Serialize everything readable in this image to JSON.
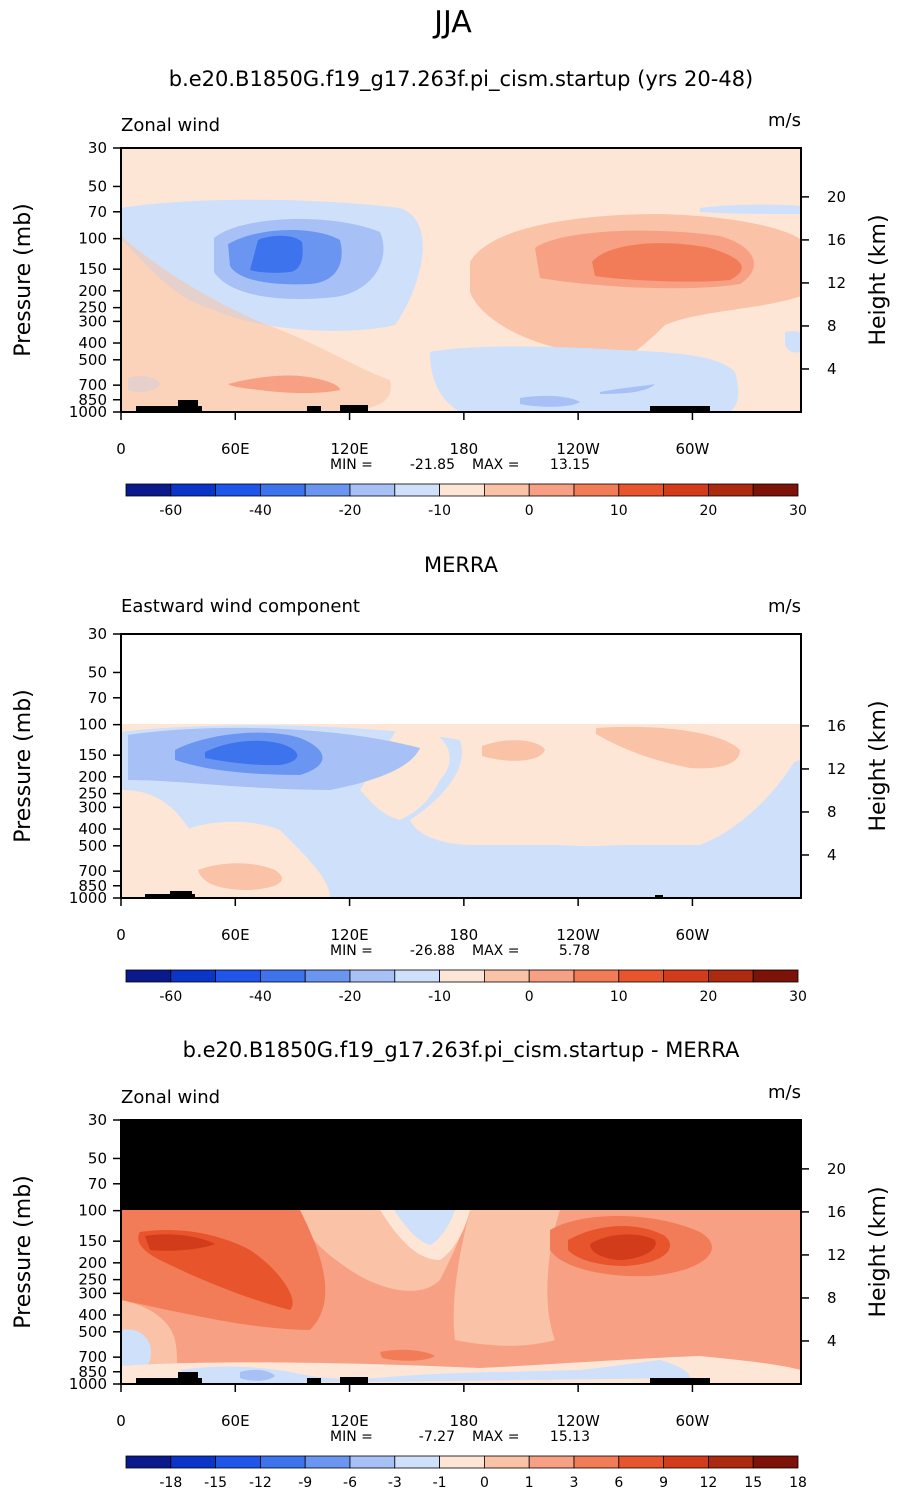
{
  "figure_title": "JJA",
  "chart_data": [
    {
      "type": "heatmap",
      "title": "b.e20.B1850G.f19_g17.263f.pi_cism.startup (yrs 20-48)",
      "subtitle_left": "Zonal wind",
      "units": "m/s",
      "ylabel": "Pressure (mb)",
      "ylabel_right": "Height (km)",
      "x_ticks": [
        "0",
        "60E",
        "120E",
        "180",
        "120W",
        "60W"
      ],
      "x_tick_values": [
        0,
        60,
        120,
        180,
        240,
        300
      ],
      "xlim": [
        0,
        357
      ],
      "y_ticks": [
        30,
        50,
        70,
        100,
        150,
        200,
        250,
        300,
        400,
        500,
        700,
        850,
        1000
      ],
      "ylim": [
        1000,
        30
      ],
      "height_ticks": [
        4,
        8,
        12,
        16,
        20
      ],
      "min_label": "MIN =",
      "max_label": "MAX =",
      "min_text": "-21.85",
      "max_text": "13.15",
      "colorbar_labels": [
        "-60",
        "-40",
        "-20",
        "-10",
        "0",
        "10",
        "20",
        "30"
      ],
      "colorbar_colors": [
        "#0a1a8c",
        "#0b35c8",
        "#1f55e8",
        "#3d74ee",
        "#6a95f0",
        "#a7c0f5",
        "#cfe0fa",
        "#fde6d6",
        "#fac2a6",
        "#f7a083",
        "#f27c57",
        "#e8552c",
        "#d23c1a",
        "#ab2a10",
        "#7d1208"
      ],
      "missing_above_mb": null
    },
    {
      "type": "heatmap",
      "title": "MERRA",
      "subtitle_left": "Eastward wind component",
      "units": "m/s",
      "ylabel": "Pressure (mb)",
      "ylabel_right": "Height (km)",
      "x_ticks": [
        "0",
        "60E",
        "120E",
        "180",
        "120W",
        "60W"
      ],
      "x_tick_values": [
        0,
        60,
        120,
        180,
        240,
        300
      ],
      "xlim": [
        0,
        357
      ],
      "y_ticks": [
        30,
        50,
        70,
        100,
        150,
        200,
        250,
        300,
        400,
        500,
        700,
        850,
        1000
      ],
      "ylim": [
        1000,
        30
      ],
      "height_ticks": [
        4,
        8,
        12,
        16
      ],
      "min_label": "MIN =",
      "max_label": "MAX =",
      "min_text": "-26.88",
      "max_text": "5.78",
      "colorbar_labels": [
        "-60",
        "-40",
        "-20",
        "-10",
        "0",
        "10",
        "20",
        "30"
      ],
      "colorbar_colors": [
        "#0a1a8c",
        "#0b35c8",
        "#1f55e8",
        "#3d74ee",
        "#6a95f0",
        "#a7c0f5",
        "#cfe0fa",
        "#fde6d6",
        "#fac2a6",
        "#f7a083",
        "#f27c57",
        "#e8552c",
        "#d23c1a",
        "#ab2a10",
        "#7d1208"
      ],
      "missing_above_mb": 100
    },
    {
      "type": "heatmap",
      "title": "b.e20.B1850G.f19_g17.263f.pi_cism.startup - MERRA",
      "subtitle_left": "Zonal wind",
      "units": "m/s",
      "ylabel": "Pressure (mb)",
      "ylabel_right": "Height (km)",
      "x_ticks": [
        "0",
        "60E",
        "120E",
        "180",
        "120W",
        "60W"
      ],
      "x_tick_values": [
        0,
        60,
        120,
        180,
        240,
        300
      ],
      "xlim": [
        0,
        357
      ],
      "y_ticks": [
        30,
        50,
        70,
        100,
        150,
        200,
        250,
        300,
        400,
        500,
        700,
        850,
        1000
      ],
      "ylim": [
        1000,
        30
      ],
      "height_ticks": [
        4,
        8,
        12,
        16,
        20
      ],
      "min_label": "MIN =",
      "max_label": "MAX =",
      "min_text": "-7.27",
      "max_text": "15.13",
      "colorbar_labels": [
        "-18",
        "-15",
        "-12",
        "-9",
        "-6",
        "-3",
        "-1",
        "0",
        "1",
        "3",
        "6",
        "9",
        "12",
        "15",
        "18"
      ],
      "colorbar_colors": [
        "#0a1a8c",
        "#0b35c8",
        "#1f55e8",
        "#3d74ee",
        "#6a95f0",
        "#a7c0f5",
        "#cfe0fa",
        "#fde6d6",
        "#fac2a6",
        "#f7a083",
        "#f27c57",
        "#e8552c",
        "#d23c1a",
        "#ab2a10",
        "#7d1208"
      ],
      "missing_above_mb": 100,
      "missing_fill": "#000000"
    }
  ]
}
